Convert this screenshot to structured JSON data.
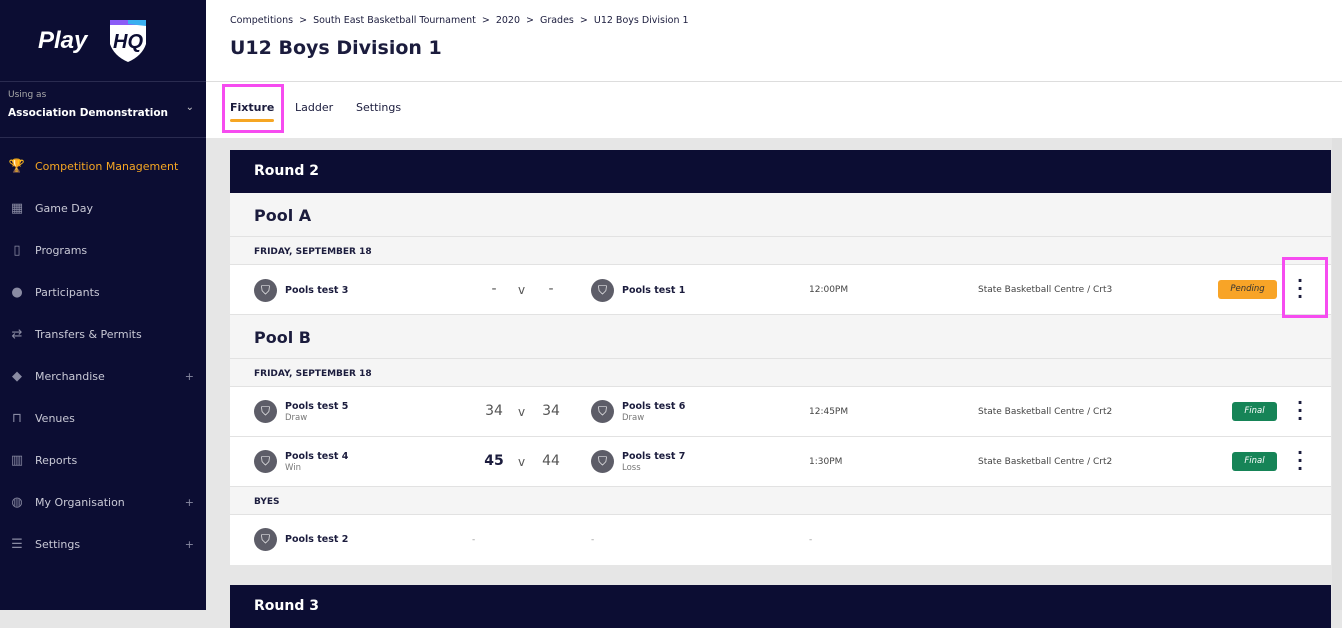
{
  "sidebar": {
    "logo": "PlayHQ",
    "using_as_label": "Using as",
    "organisation": "Association Demonstration",
    "items": [
      {
        "label": "Competition Management",
        "icon": "trophy-icon",
        "active": true
      },
      {
        "label": "Game Day",
        "icon": "scoreboard-icon"
      },
      {
        "label": "Programs",
        "icon": "book-icon"
      },
      {
        "label": "Participants",
        "icon": "people-icon"
      },
      {
        "label": "Transfers & Permits",
        "icon": "arrows-icon"
      },
      {
        "label": "Merchandise",
        "icon": "box-icon",
        "expandable": true
      },
      {
        "label": "Venues",
        "icon": "stadium-icon"
      },
      {
        "label": "Reports",
        "icon": "chart-icon"
      },
      {
        "label": "My Organisation",
        "icon": "globe-icon",
        "expandable": true
      },
      {
        "label": "Settings",
        "icon": "sliders-icon",
        "expandable": true
      }
    ]
  },
  "breadcrumb": [
    "Competitions",
    "South East Basketball Tournament",
    "2020",
    "Grades",
    "U12 Boys Division 1"
  ],
  "page_title": "U12 Boys Division 1",
  "tabs": [
    {
      "label": "Fixture",
      "active": true
    },
    {
      "label": "Ladder"
    },
    {
      "label": "Settings"
    }
  ],
  "round2": {
    "title": "Round 2",
    "poolA": {
      "title": "Pool A",
      "date": "FRIDAY, SEPTEMBER 18",
      "matches": [
        {
          "home": "Pools test 3",
          "home_score": "-",
          "vs": "v",
          "away": "Pools test 1",
          "away_score": "-",
          "time": "12:00PM",
          "venue": "State Basketball Centre / Crt3",
          "status": "Pending"
        }
      ]
    },
    "poolB": {
      "title": "Pool B",
      "date": "FRIDAY, SEPTEMBER 18",
      "matches": [
        {
          "home": "Pools test 5",
          "home_result": "Draw",
          "home_score": "34",
          "vs": "v",
          "away": "Pools test 6",
          "away_result": "Draw",
          "away_score": "34",
          "time": "12:45PM",
          "venue": "State Basketball Centre / Crt2",
          "status": "Final"
        },
        {
          "home": "Pools test 4",
          "home_result": "Win",
          "home_score": "45",
          "vs": "v",
          "away": "Pools test 7",
          "away_result": "Loss",
          "away_score": "44",
          "time": "1:30PM",
          "venue": "State Basketball Centre / Crt2",
          "status": "Final"
        }
      ],
      "byes_label": "BYES",
      "bye": {
        "team": "Pools test 2",
        "dash": "-"
      }
    }
  },
  "round3": {
    "title": "Round 3"
  },
  "colors": {
    "navy": "#0c0d33",
    "accent": "#f6a623",
    "pending": "#f8a427",
    "final": "#168457",
    "highlight": "#f64cf0"
  }
}
